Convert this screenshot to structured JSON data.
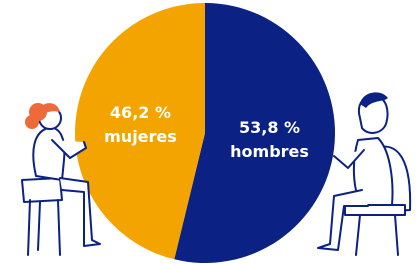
{
  "chart_data": {
    "type": "pie",
    "categories": [
      "mujeres",
      "hombres"
    ],
    "values": [
      46.2,
      53.8
    ],
    "value_labels": [
      "46,2 %",
      "53,8 %"
    ],
    "colors": [
      "#f3a400",
      "#0b2183"
    ]
  }
}
